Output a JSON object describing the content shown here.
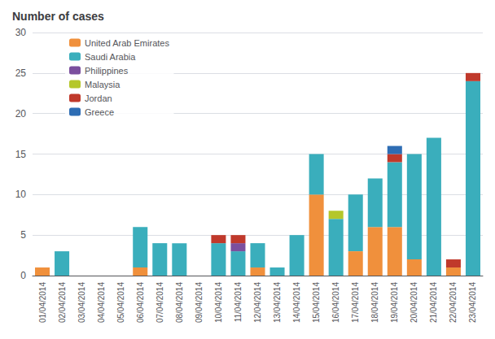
{
  "chart_data": {
    "type": "bar",
    "title": "Number of cases",
    "categories": [
      "01/04/2014",
      "02/04/2014",
      "03/04/2014",
      "04/04/2014",
      "05/04/2014",
      "06/04/2014",
      "07/04/2014",
      "08/04/2014",
      "09/04/2014",
      "10/04/2014",
      "11/04/2014",
      "12/04/2014",
      "13/04/2014",
      "14/04/2014",
      "15/04/2014",
      "16/04/2014",
      "17/04/2014",
      "18/04/2014",
      "19/04/2014",
      "20/04/2014",
      "21/04/2014",
      "22/04/2014",
      "23/04/2014"
    ],
    "series": [
      {
        "name": "United Arab Emirates",
        "color": "#F0903C",
        "values": [
          1,
          0,
          0,
          0,
          0,
          1,
          0,
          0,
          0,
          0,
          0,
          1,
          0,
          0,
          10,
          0,
          3,
          6,
          6,
          2,
          0,
          1,
          0
        ]
      },
      {
        "name": "Saudi Arabia",
        "color": "#3AAEBC",
        "values": [
          0,
          3,
          0,
          0,
          0,
          5,
          4,
          4,
          0,
          4,
          3,
          3,
          1,
          5,
          5,
          7,
          7,
          6,
          8,
          13,
          17,
          0,
          24
        ]
      },
      {
        "name": "Philippines",
        "color": "#7B4F9E",
        "values": [
          0,
          0,
          0,
          0,
          0,
          0,
          0,
          0,
          0,
          0,
          1,
          0,
          0,
          0,
          0,
          0,
          0,
          0,
          0,
          0,
          0,
          0,
          0
        ]
      },
      {
        "name": "Malaysia",
        "color": "#B5C72A",
        "values": [
          0,
          0,
          0,
          0,
          0,
          0,
          0,
          0,
          0,
          0,
          0,
          0,
          0,
          0,
          0,
          1,
          0,
          0,
          0,
          0,
          0,
          0,
          0
        ]
      },
      {
        "name": "Jordan",
        "color": "#C0392B",
        "values": [
          0,
          0,
          0,
          0,
          0,
          0,
          0,
          0,
          0,
          1,
          1,
          0,
          0,
          0,
          0,
          0,
          0,
          0,
          1,
          0,
          0,
          1,
          1
        ]
      },
      {
        "name": "Greece",
        "color": "#2E6DB4",
        "values": [
          0,
          0,
          0,
          0,
          0,
          0,
          0,
          0,
          0,
          0,
          0,
          0,
          0,
          0,
          0,
          0,
          0,
          0,
          1,
          0,
          0,
          0,
          0
        ]
      }
    ],
    "stacked": true,
    "ylim": [
      0,
      30
    ],
    "yticks": [
      0,
      5,
      10,
      15,
      20,
      25,
      30
    ],
    "grid": true,
    "legend": "upper left"
  }
}
